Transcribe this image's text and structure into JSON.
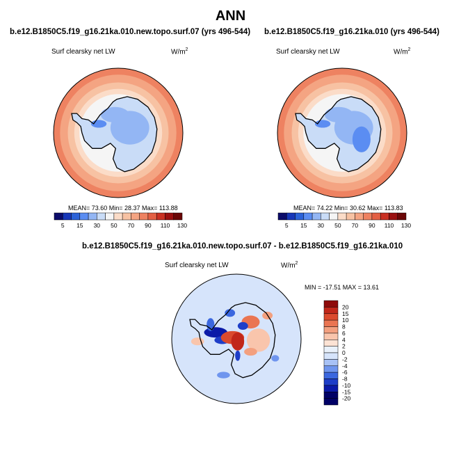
{
  "page": {
    "title": "ANN"
  },
  "colors": {
    "land_outline": "#000000",
    "scale_abs": [
      "#0c0c6a",
      "#1736b8",
      "#2b62d8",
      "#5b8df2",
      "#93b6f4",
      "#c9dcf7",
      "#f5f5f5",
      "#fbdcc8",
      "#f7c2a3",
      "#f4a482",
      "#ee8261",
      "#e35f43",
      "#c93022",
      "#9a0f0f",
      "#6a0606"
    ],
    "scale_diff": [
      "#000066",
      "#0b1aa8",
      "#1e3ec8",
      "#3b67df",
      "#6f95ee",
      "#a8c2f6",
      "#d6e4fb",
      "#e9f1fb",
      "#fde3d4",
      "#f9c5ac",
      "#f3a07f",
      "#ea7552",
      "#db4a2e",
      "#c1271a",
      "#8e0a0a"
    ]
  },
  "panels": [
    {
      "title": "b.e12.B1850C5.f19_g16.21ka.010.new.topo.surf.07 (yrs 496-544)",
      "variable": "Surf clearsky net LW",
      "units_base": "W/m",
      "units_exp": "2",
      "stats_text": "MEAN=  73.60  Min=  28.37  Max=  113.88"
    },
    {
      "title": "b.e12.B1850C5.f19_g16.21ka.010 (yrs 496-544)",
      "variable": "Surf clearsky net LW",
      "units_base": "W/m",
      "units_exp": "2",
      "stats_text": "MEAN=  74.22  Min=  30.62  Max=  113.83"
    },
    {
      "title": "b.e12.B1850C5.f19_g16.21ka.010.new.topo.surf.07 - b.e12.B1850C5.f19_g16.21ka.010",
      "variable": "Surf clearsky net LW",
      "units_base": "W/m",
      "units_exp": "2",
      "stats_text": "MIN = -17.51 MAX =  13.61"
    }
  ],
  "chart_data": [
    {
      "type": "heatmap",
      "projection": "south polar stereographic",
      "title": "b.e12.B1850C5.f19_g16.21ka.010.new.topo.surf.07 (yrs 496-544)",
      "variable": "Surf clearsky net LW",
      "units": "W/m^2",
      "stats": {
        "mean": 73.6,
        "min": 28.37,
        "max": 113.88
      },
      "colorbar_ticks": [
        "5",
        "15",
        "30",
        "50",
        "70",
        "90",
        "110",
        "130"
      ],
      "colorbar_orientation": "horizontal"
    },
    {
      "type": "heatmap",
      "projection": "south polar stereographic",
      "title": "b.e12.B1850C5.f19_g16.21ka.010 (yrs 496-544)",
      "variable": "Surf clearsky net LW",
      "units": "W/m^2",
      "stats": {
        "mean": 74.22,
        "min": 30.62,
        "max": 113.83
      },
      "colorbar_ticks": [
        "5",
        "15",
        "30",
        "50",
        "70",
        "90",
        "110",
        "130"
      ],
      "colorbar_orientation": "horizontal"
    },
    {
      "type": "heatmap",
      "projection": "south polar stereographic",
      "title": "b.e12.B1850C5.f19_g16.21ka.010.new.topo.surf.07 - b.e12.B1850C5.f19_g16.21ka.010",
      "variable": "Surf clearsky net LW",
      "units": "W/m^2",
      "stats": {
        "min": -17.51,
        "max": 13.61
      },
      "colorbar_ticks": [
        "20",
        "15",
        "10",
        "8",
        "6",
        "4",
        "2",
        "0",
        "-2",
        "-4",
        "-6",
        "-8",
        "-10",
        "-15",
        "-20"
      ],
      "colorbar_orientation": "vertical"
    }
  ]
}
